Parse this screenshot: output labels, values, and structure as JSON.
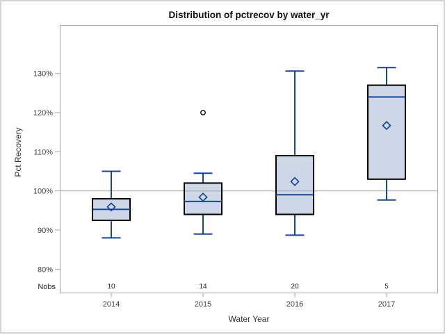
{
  "window": {
    "background": "#ffffff"
  },
  "chart_data": {
    "type": "boxplot",
    "title": "Distribution of pctrecov by water_yr",
    "xlabel": "Water Year",
    "ylabel": "Pct Recovery",
    "categories": [
      "2014",
      "2015",
      "2016",
      "2017"
    ],
    "y_ticks": [
      "80%",
      "90%",
      "100%",
      "110%",
      "120%",
      "130%"
    ],
    "ylim": [
      74,
      142
    ],
    "reference_line": 100,
    "grid": false,
    "nobs_label": "Nobs",
    "series": [
      {
        "category": "2014",
        "n": "10",
        "whisker_low": 88,
        "q1": 92.5,
        "median": 95.3,
        "q3": 98,
        "whisker_high": 105,
        "mean": 95.9,
        "outliers": []
      },
      {
        "category": "2015",
        "n": "14",
        "whisker_low": 89,
        "q1": 94,
        "median": 97.3,
        "q3": 102,
        "whisker_high": 104.5,
        "mean": 98.4,
        "outliers": [
          120
        ]
      },
      {
        "category": "2016",
        "n": "20",
        "whisker_low": 88.7,
        "q1": 94,
        "median": 99,
        "q3": 109,
        "whisker_high": 130.6,
        "mean": 102.4,
        "outliers": []
      },
      {
        "category": "2017",
        "n": "5",
        "whisker_low": 97.7,
        "q1": 103,
        "median": 124,
        "q3": 127,
        "whisker_high": 131.5,
        "mean": 116.7,
        "outliers": []
      }
    ]
  },
  "colors": {
    "box_fill": "#cdd7e6",
    "box_border": "#000000",
    "line_blue": "#17459a",
    "outlier": "#000000",
    "reference_line": "#ababab",
    "plot_frame": "#a0a6ab",
    "figure_border": "#d3d3d3",
    "title_text": "#101010",
    "axis_text": "#3d3d3d"
  }
}
